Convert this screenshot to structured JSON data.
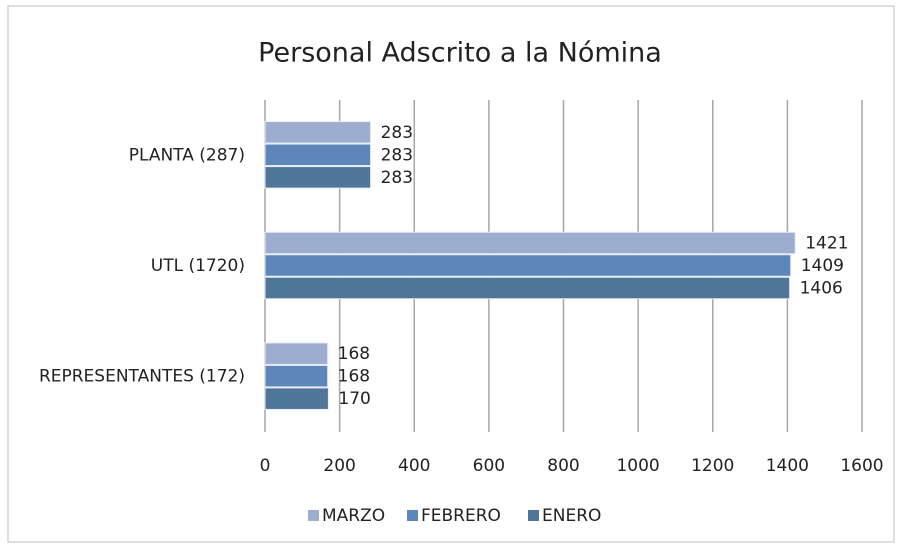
{
  "chart_data": {
    "type": "bar",
    "orientation": "horizontal",
    "title": "Personal Adscrito a la Nómina",
    "categories": [
      "PLANTA (287)",
      "UTL (1720)",
      "REPRESENTANTES (172)"
    ],
    "series": [
      {
        "name": "MARZO",
        "color": "#9dadd0",
        "values": [
          283,
          1421,
          168
        ]
      },
      {
        "name": "FEBRERO",
        "color": "#5d87ba",
        "values": [
          283,
          1409,
          168
        ]
      },
      {
        "name": "ENERO",
        "color": "#4f7598",
        "values": [
          283,
          1406,
          170
        ]
      }
    ],
    "xlim": [
      0,
      1600
    ],
    "xticks": [
      0,
      200,
      400,
      600,
      800,
      1000,
      1200,
      1400,
      1600
    ],
    "grid": true,
    "legend": "bottom"
  }
}
